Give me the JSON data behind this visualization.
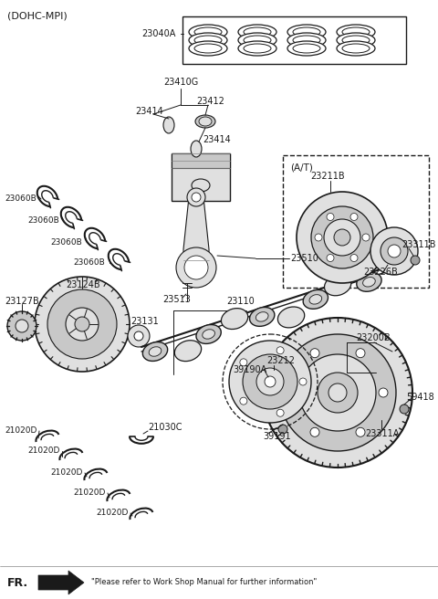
{
  "fig_width": 4.8,
  "fig_height": 6.56,
  "dpi": 100,
  "background_color": "#ffffff",
  "header_text": "(DOHC-MPI)",
  "footer_text": "\"Please refer to Work Shop Manual for further information\"",
  "at_label": "(A/T)",
  "line_color": "#1a1a1a",
  "gray1": "#c8c8c8",
  "gray2": "#e0e0e0",
  "gray3": "#a0a0a0"
}
